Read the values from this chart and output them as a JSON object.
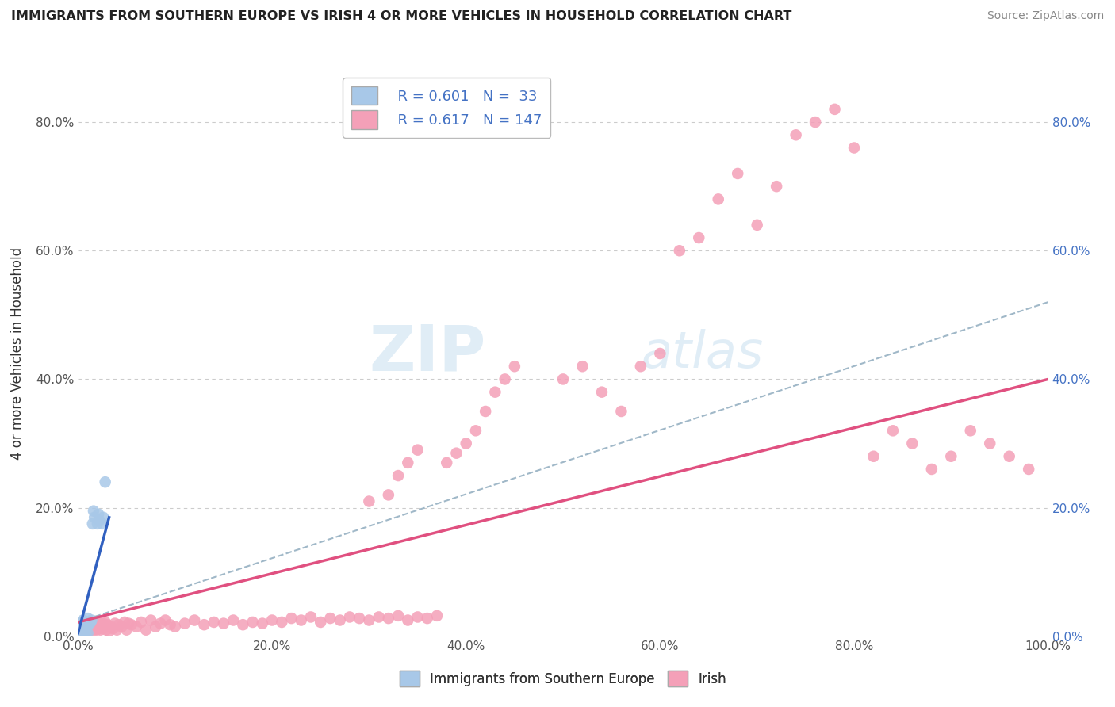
{
  "title": "IMMIGRANTS FROM SOUTHERN EUROPE VS IRISH 4 OR MORE VEHICLES IN HOUSEHOLD CORRELATION CHART",
  "source": "Source: ZipAtlas.com",
  "ylabel": "4 or more Vehicles in Household",
  "xlim": [
    0.0,
    1.0
  ],
  "ylim": [
    0.0,
    0.88
  ],
  "xticks": [
    0.0,
    0.2,
    0.4,
    0.6,
    0.8,
    1.0
  ],
  "yticks": [
    0.0,
    0.2,
    0.4,
    0.6,
    0.8
  ],
  "xticklabels": [
    "0.0%",
    "20.0%",
    "40.0%",
    "60.0%",
    "80.0%",
    "100.0%"
  ],
  "yticklabels": [
    "0.0%",
    "20.0%",
    "40.0%",
    "60.0%",
    "80.0%"
  ],
  "legend_r1": "R = 0.601",
  "legend_n1": "N =  33",
  "legend_r2": "R = 0.617",
  "legend_n2": "N = 147",
  "watermark_zip": "ZIP",
  "watermark_atlas": "atlas",
  "blue_color": "#a8c8e8",
  "pink_color": "#f4a0b8",
  "blue_line_color": "#3060c0",
  "pink_line_color": "#e05080",
  "dash_line_color": "#a0b8c8",
  "background_color": "#ffffff",
  "grid_color": "#cccccc",
  "blue_scatter": [
    [
      0.001,
      0.01
    ],
    [
      0.002,
      0.015
    ],
    [
      0.002,
      0.02
    ],
    [
      0.003,
      0.012
    ],
    [
      0.003,
      0.018
    ],
    [
      0.004,
      0.008
    ],
    [
      0.004,
      0.022
    ],
    [
      0.005,
      0.01
    ],
    [
      0.005,
      0.025
    ],
    [
      0.006,
      0.015
    ],
    [
      0.006,
      0.02
    ],
    [
      0.007,
      0.018
    ],
    [
      0.008,
      0.012
    ],
    [
      0.008,
      0.022
    ],
    [
      0.009,
      0.015
    ],
    [
      0.01,
      0.018
    ],
    [
      0.01,
      0.028
    ],
    [
      0.012,
      0.02
    ],
    [
      0.013,
      0.022
    ],
    [
      0.014,
      0.025
    ],
    [
      0.015,
      0.175
    ],
    [
      0.016,
      0.195
    ],
    [
      0.017,
      0.185
    ],
    [
      0.02,
      0.175
    ],
    [
      0.021,
      0.19
    ],
    [
      0.022,
      0.18
    ],
    [
      0.025,
      0.175
    ],
    [
      0.026,
      0.185
    ],
    [
      0.028,
      0.24
    ],
    [
      0.004,
      0.005
    ],
    [
      0.006,
      0.008
    ],
    [
      0.008,
      0.003
    ],
    [
      0.01,
      0.005
    ]
  ],
  "pink_scatter": [
    [
      0.001,
      0.01
    ],
    [
      0.002,
      0.008
    ],
    [
      0.002,
      0.015
    ],
    [
      0.003,
      0.012
    ],
    [
      0.003,
      0.02
    ],
    [
      0.004,
      0.01
    ],
    [
      0.004,
      0.018
    ],
    [
      0.005,
      0.008
    ],
    [
      0.005,
      0.015
    ],
    [
      0.006,
      0.012
    ],
    [
      0.006,
      0.02
    ],
    [
      0.007,
      0.01
    ],
    [
      0.007,
      0.018
    ],
    [
      0.008,
      0.008
    ],
    [
      0.008,
      0.015
    ],
    [
      0.009,
      0.012
    ],
    [
      0.009,
      0.02
    ],
    [
      0.01,
      0.01
    ],
    [
      0.01,
      0.018
    ],
    [
      0.011,
      0.012
    ],
    [
      0.011,
      0.02
    ],
    [
      0.012,
      0.015
    ],
    [
      0.012,
      0.022
    ],
    [
      0.013,
      0.01
    ],
    [
      0.013,
      0.018
    ],
    [
      0.014,
      0.012
    ],
    [
      0.014,
      0.02
    ],
    [
      0.015,
      0.015
    ],
    [
      0.015,
      0.022
    ],
    [
      0.016,
      0.01
    ],
    [
      0.016,
      0.018
    ],
    [
      0.017,
      0.012
    ],
    [
      0.017,
      0.02
    ],
    [
      0.018,
      0.015
    ],
    [
      0.018,
      0.022
    ],
    [
      0.019,
      0.01
    ],
    [
      0.019,
      0.018
    ],
    [
      0.02,
      0.012
    ],
    [
      0.02,
      0.02
    ],
    [
      0.021,
      0.015
    ],
    [
      0.022,
      0.022
    ],
    [
      0.023,
      0.01
    ],
    [
      0.024,
      0.018
    ],
    [
      0.025,
      0.012
    ],
    [
      0.026,
      0.02
    ],
    [
      0.027,
      0.015
    ],
    [
      0.028,
      0.022
    ],
    [
      0.029,
      0.01
    ],
    [
      0.03,
      0.018
    ],
    [
      0.032,
      0.008
    ],
    [
      0.034,
      0.015
    ],
    [
      0.036,
      0.012
    ],
    [
      0.038,
      0.02
    ],
    [
      0.04,
      0.01
    ],
    [
      0.042,
      0.018
    ],
    [
      0.045,
      0.015
    ],
    [
      0.048,
      0.022
    ],
    [
      0.05,
      0.01
    ],
    [
      0.052,
      0.02
    ],
    [
      0.055,
      0.018
    ],
    [
      0.06,
      0.015
    ],
    [
      0.065,
      0.022
    ],
    [
      0.07,
      0.01
    ],
    [
      0.075,
      0.025
    ],
    [
      0.08,
      0.015
    ],
    [
      0.085,
      0.02
    ],
    [
      0.09,
      0.025
    ],
    [
      0.095,
      0.018
    ],
    [
      0.1,
      0.015
    ],
    [
      0.11,
      0.02
    ],
    [
      0.12,
      0.025
    ],
    [
      0.13,
      0.018
    ],
    [
      0.14,
      0.022
    ],
    [
      0.15,
      0.02
    ],
    [
      0.16,
      0.025
    ],
    [
      0.17,
      0.018
    ],
    [
      0.18,
      0.022
    ],
    [
      0.19,
      0.02
    ],
    [
      0.2,
      0.025
    ],
    [
      0.21,
      0.022
    ],
    [
      0.22,
      0.028
    ],
    [
      0.23,
      0.025
    ],
    [
      0.24,
      0.03
    ],
    [
      0.25,
      0.022
    ],
    [
      0.26,
      0.028
    ],
    [
      0.27,
      0.025
    ],
    [
      0.28,
      0.03
    ],
    [
      0.29,
      0.028
    ],
    [
      0.3,
      0.025
    ],
    [
      0.31,
      0.03
    ],
    [
      0.32,
      0.028
    ],
    [
      0.33,
      0.032
    ],
    [
      0.34,
      0.025
    ],
    [
      0.35,
      0.03
    ],
    [
      0.36,
      0.028
    ],
    [
      0.37,
      0.032
    ],
    [
      0.38,
      0.27
    ],
    [
      0.39,
      0.285
    ],
    [
      0.4,
      0.3
    ],
    [
      0.41,
      0.32
    ],
    [
      0.42,
      0.35
    ],
    [
      0.43,
      0.38
    ],
    [
      0.44,
      0.4
    ],
    [
      0.45,
      0.42
    ],
    [
      0.3,
      0.21
    ],
    [
      0.32,
      0.22
    ],
    [
      0.33,
      0.25
    ],
    [
      0.34,
      0.27
    ],
    [
      0.35,
      0.29
    ],
    [
      0.5,
      0.4
    ],
    [
      0.52,
      0.42
    ],
    [
      0.54,
      0.38
    ],
    [
      0.56,
      0.35
    ],
    [
      0.58,
      0.42
    ],
    [
      0.6,
      0.44
    ],
    [
      0.62,
      0.6
    ],
    [
      0.64,
      0.62
    ],
    [
      0.66,
      0.68
    ],
    [
      0.68,
      0.72
    ],
    [
      0.7,
      0.64
    ],
    [
      0.72,
      0.7
    ],
    [
      0.74,
      0.78
    ],
    [
      0.76,
      0.8
    ],
    [
      0.78,
      0.82
    ],
    [
      0.8,
      0.76
    ],
    [
      0.82,
      0.28
    ],
    [
      0.84,
      0.32
    ],
    [
      0.86,
      0.3
    ],
    [
      0.88,
      0.26
    ],
    [
      0.9,
      0.28
    ],
    [
      0.92,
      0.32
    ],
    [
      0.94,
      0.3
    ],
    [
      0.96,
      0.28
    ],
    [
      0.98,
      0.26
    ]
  ]
}
